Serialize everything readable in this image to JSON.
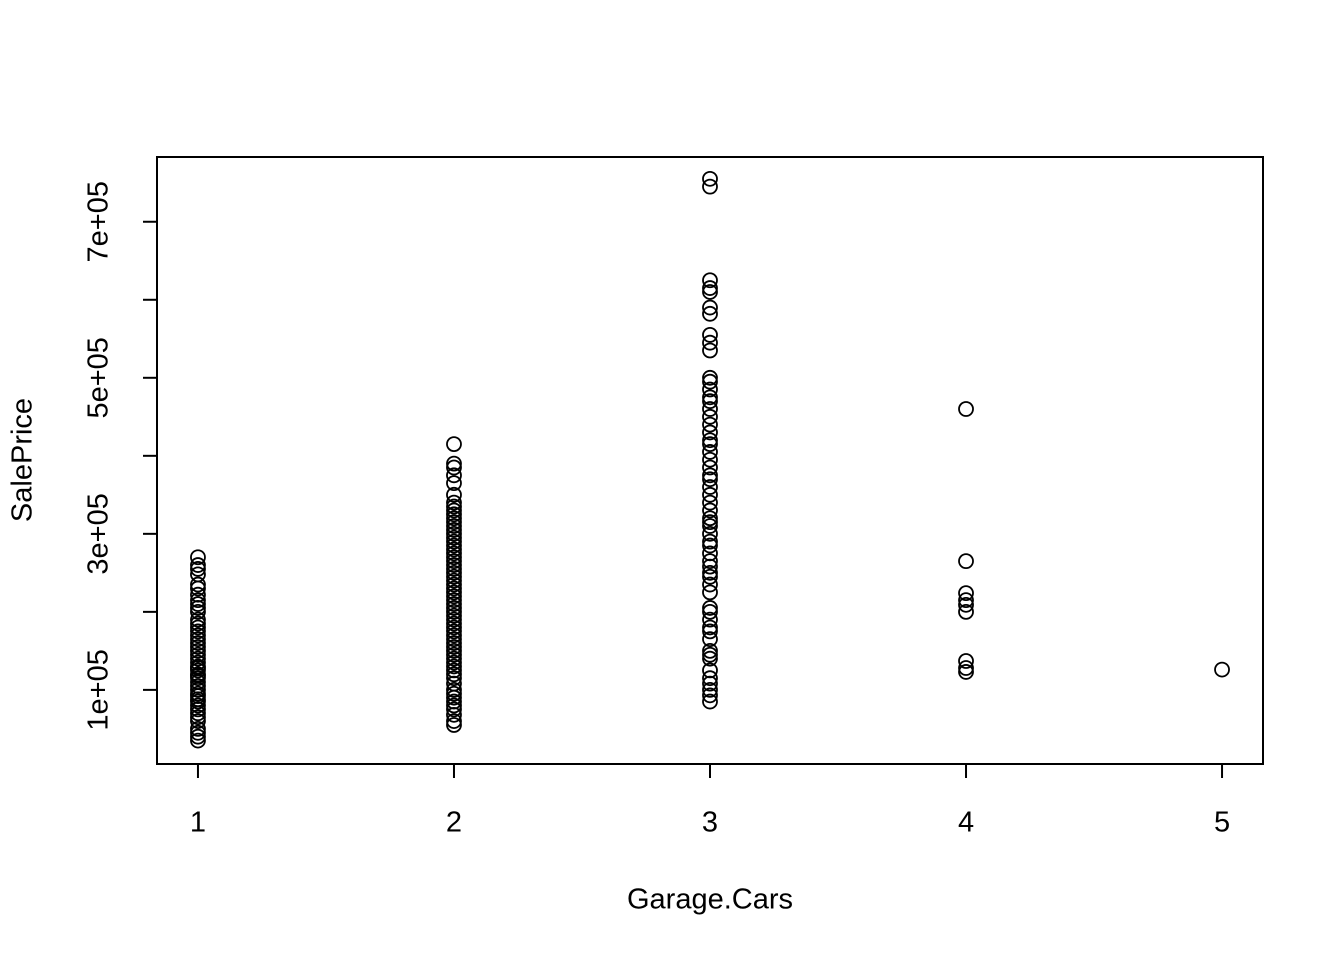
{
  "chart_data": {
    "type": "scatter",
    "x_label": "Garage.Cars",
    "y_label": "SalePrice",
    "x": [
      1,
      1,
      1,
      1,
      1,
      1,
      1,
      1,
      1,
      1,
      1,
      1,
      1,
      1,
      1,
      1,
      1,
      1,
      1,
      1,
      1,
      1,
      1,
      1,
      1,
      1,
      1,
      1,
      1,
      1,
      1,
      1,
      1,
      1,
      1,
      1,
      1,
      1,
      1,
      1,
      1,
      1,
      1,
      1,
      1,
      2,
      2,
      2,
      2,
      2,
      2,
      2,
      2,
      2,
      2,
      2,
      2,
      2,
      2,
      2,
      2,
      2,
      2,
      2,
      2,
      2,
      2,
      2,
      2,
      2,
      2,
      2,
      2,
      2,
      2,
      2,
      2,
      2,
      2,
      2,
      2,
      2,
      2,
      2,
      2,
      2,
      2,
      2,
      2,
      2,
      2,
      2,
      2,
      2,
      2,
      2,
      2,
      2,
      2,
      2,
      2,
      2,
      2,
      2,
      2,
      2,
      2,
      3,
      3,
      3,
      3,
      3,
      3,
      3,
      3,
      3,
      3,
      3,
      3,
      3,
      3,
      3,
      3,
      3,
      3,
      3,
      3,
      3,
      3,
      3,
      3,
      3,
      3,
      3,
      3,
      3,
      3,
      3,
      3,
      3,
      3,
      3,
      3,
      3,
      3,
      3,
      3,
      3,
      3,
      3,
      3,
      3,
      3,
      3,
      3,
      3,
      3,
      3,
      3,
      3,
      3,
      3,
      3,
      3,
      3,
      4,
      4,
      4,
      4,
      4,
      4,
      4,
      4,
      4,
      5
    ],
    "values": [
      35000,
      40000,
      45000,
      50000,
      60000,
      65000,
      70000,
      75000,
      80000,
      85000,
      88000,
      92000,
      95000,
      100000,
      105000,
      110000,
      115000,
      118000,
      120000,
      125000,
      128000,
      130000,
      135000,
      140000,
      145000,
      150000,
      155000,
      160000,
      165000,
      170000,
      175000,
      180000,
      185000,
      190000,
      200000,
      205000,
      210000,
      215000,
      222000,
      230000,
      235000,
      248000,
      255000,
      260000,
      270000,
      55000,
      60000,
      68000,
      75000,
      80000,
      85000,
      90000,
      95000,
      100000,
      108000,
      115000,
      120000,
      125000,
      130000,
      135000,
      140000,
      145000,
      150000,
      155000,
      160000,
      165000,
      170000,
      175000,
      180000,
      185000,
      190000,
      195000,
      200000,
      205000,
      210000,
      215000,
      220000,
      225000,
      230000,
      235000,
      240000,
      245000,
      250000,
      255000,
      260000,
      265000,
      270000,
      275000,
      280000,
      285000,
      290000,
      295000,
      300000,
      305000,
      310000,
      315000,
      320000,
      325000,
      330000,
      335000,
      340000,
      350000,
      365000,
      375000,
      385000,
      390000,
      415000,
      85000,
      93000,
      100000,
      108000,
      115000,
      125000,
      140000,
      145000,
      150000,
      165000,
      175000,
      180000,
      190000,
      200000,
      205000,
      225000,
      235000,
      245000,
      250000,
      258000,
      265000,
      275000,
      285000,
      290000,
      300000,
      310000,
      315000,
      320000,
      330000,
      340000,
      350000,
      360000,
      370000,
      375000,
      385000,
      395000,
      405000,
      415000,
      420000,
      430000,
      440000,
      450000,
      460000,
      470000,
      475000,
      485000,
      495000,
      500000,
      535000,
      545000,
      555000,
      582000,
      590000,
      610000,
      615000,
      625000,
      745000,
      755000,
      460000,
      265000,
      224000,
      215000,
      209000,
      200000,
      137000,
      128000,
      123000,
      126000
    ],
    "xlim": [
      0.84,
      5.16
    ],
    "ylim": [
      5000,
      783000
    ],
    "xticks": [
      1,
      2,
      3,
      4,
      5
    ],
    "yticks": [
      {
        "value": 100000,
        "label": "1e+05"
      },
      {
        "value": 300000,
        "label": "3e+05"
      },
      {
        "value": 500000,
        "label": "5e+05"
      },
      {
        "value": 700000,
        "label": "7e+05"
      }
    ],
    "yticks_unlabeled": [
      200000,
      400000,
      600000
    ],
    "color": "#000000"
  }
}
